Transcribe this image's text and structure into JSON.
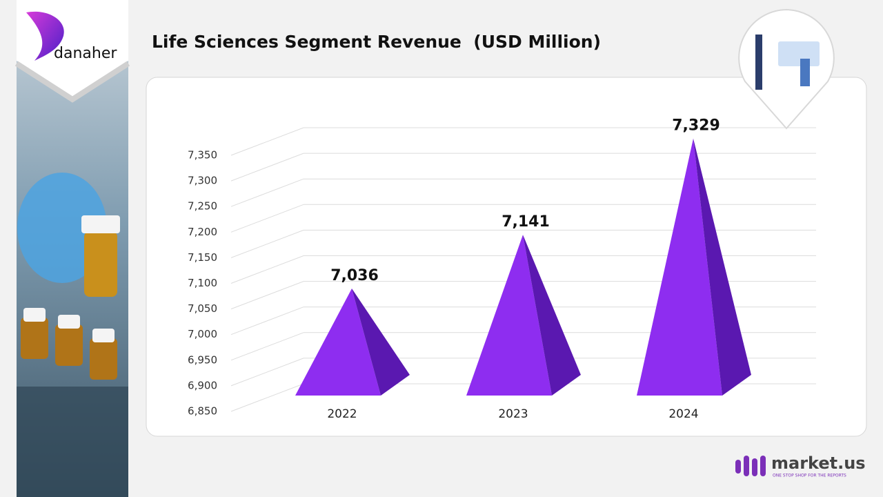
{
  "chart_data": {
    "type": "pyramid",
    "title": "Life Sciences Segment Revenue  (USD Million)",
    "categories": [
      "2022",
      "2023",
      "2024"
    ],
    "values": [
      7036,
      7141,
      7329
    ],
    "value_labels": [
      "7,036",
      "7,141",
      "7,329"
    ],
    "color": "#8e2df0",
    "side_color": "#5a18b0",
    "ylim": [
      6850,
      7350
    ],
    "yticks": [
      {
        "value": 6850,
        "label": "6,850"
      },
      {
        "value": 6900,
        "label": "6,900"
      },
      {
        "value": 6950,
        "label": "6,950"
      },
      {
        "value": 7000,
        "label": "7,000"
      },
      {
        "value": 7050,
        "label": "7,050"
      },
      {
        "value": 7100,
        "label": "7,100"
      },
      {
        "value": 7150,
        "label": "7,150"
      },
      {
        "value": 7200,
        "label": "7,200"
      },
      {
        "value": 7250,
        "label": "7,250"
      },
      {
        "value": 7300,
        "label": "7,300"
      },
      {
        "value": 7350,
        "label": "7,350"
      }
    ],
    "grid": true
  },
  "brand": {
    "company": "danaher",
    "source": "market.us",
    "tagline": "ONE STOP SHOP FOR THE REPORTS"
  }
}
